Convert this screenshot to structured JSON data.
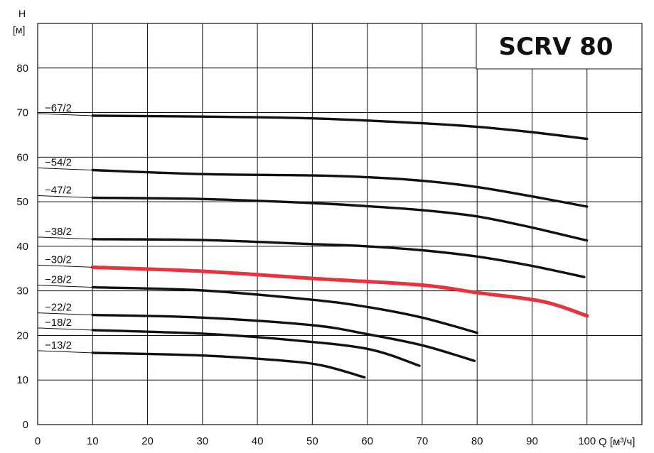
{
  "chart_data": {
    "type": "line",
    "title": "SCRV 80",
    "ylabel": "H",
    "ylabel_unit": "[м]",
    "xlabel": "Q [м³/ч]",
    "xlim": [
      0,
      110
    ],
    "ylim": [
      0,
      90
    ],
    "x_ticks": [
      0,
      10,
      20,
      30,
      40,
      50,
      60,
      70,
      80,
      90,
      100
    ],
    "y_ticks": [
      0,
      10,
      20,
      30,
      40,
      50,
      60,
      70,
      80
    ],
    "grid": true,
    "series": [
      {
        "name": "-67/2",
        "color": "#111111",
        "points": [
          [
            10,
            69.3
          ],
          [
            30,
            69.1
          ],
          [
            50,
            68.7
          ],
          [
            70,
            67.6
          ],
          [
            80,
            66.8
          ],
          [
            90,
            65.6
          ],
          [
            100,
            64.1
          ]
        ]
      },
      {
        "name": "-54/2",
        "color": "#111111",
        "points": [
          [
            10,
            57.1
          ],
          [
            30,
            56.2
          ],
          [
            50,
            55.9
          ],
          [
            60,
            55.5
          ],
          [
            70,
            54.7
          ],
          [
            80,
            53.3
          ],
          [
            90,
            51.2
          ],
          [
            100,
            48.9
          ]
        ]
      },
      {
        "name": "-47/2",
        "color": "#111111",
        "points": [
          [
            10,
            50.9
          ],
          [
            30,
            50.6
          ],
          [
            50,
            49.7
          ],
          [
            60,
            49.0
          ],
          [
            70,
            48.1
          ],
          [
            80,
            46.7
          ],
          [
            90,
            44.2
          ],
          [
            100,
            41.3
          ]
        ]
      },
      {
        "name": "-38/2",
        "color": "#111111",
        "points": [
          [
            10,
            41.6
          ],
          [
            30,
            41.4
          ],
          [
            50,
            40.5
          ],
          [
            60,
            40.0
          ],
          [
            70,
            39.1
          ],
          [
            80,
            37.7
          ],
          [
            90,
            35.6
          ],
          [
            99.5,
            33.1
          ]
        ]
      },
      {
        "name": "-30/2",
        "color": "#e8323c",
        "points": [
          [
            10,
            35.3
          ],
          [
            30,
            34.4
          ],
          [
            50,
            32.8
          ],
          [
            70,
            31.3
          ],
          [
            80,
            29.6
          ],
          [
            92,
            27.6
          ],
          [
            100,
            24.4
          ]
        ]
      },
      {
        "name": "-28/2",
        "color": "#111111",
        "points": [
          [
            10,
            30.8
          ],
          [
            30,
            30.1
          ],
          [
            50,
            28.0
          ],
          [
            60,
            26.4
          ],
          [
            70,
            24.0
          ],
          [
            80,
            20.6
          ]
        ]
      },
      {
        "name": "-22/2",
        "color": "#111111",
        "points": [
          [
            10,
            24.6
          ],
          [
            30,
            24.0
          ],
          [
            50,
            22.3
          ],
          [
            60,
            20.3
          ],
          [
            70,
            17.8
          ],
          [
            79.5,
            14.3
          ]
        ]
      },
      {
        "name": "-18/2",
        "color": "#111111",
        "points": [
          [
            10,
            21.2
          ],
          [
            30,
            20.4
          ],
          [
            45,
            19.1
          ],
          [
            60,
            17.0
          ],
          [
            69.5,
            13.2
          ]
        ]
      },
      {
        "name": "-13/2",
        "color": "#111111",
        "points": [
          [
            10,
            16.1
          ],
          [
            30,
            15.5
          ],
          [
            45,
            14.3
          ],
          [
            52,
            13.2
          ],
          [
            59.5,
            10.6
          ]
        ]
      }
    ]
  }
}
